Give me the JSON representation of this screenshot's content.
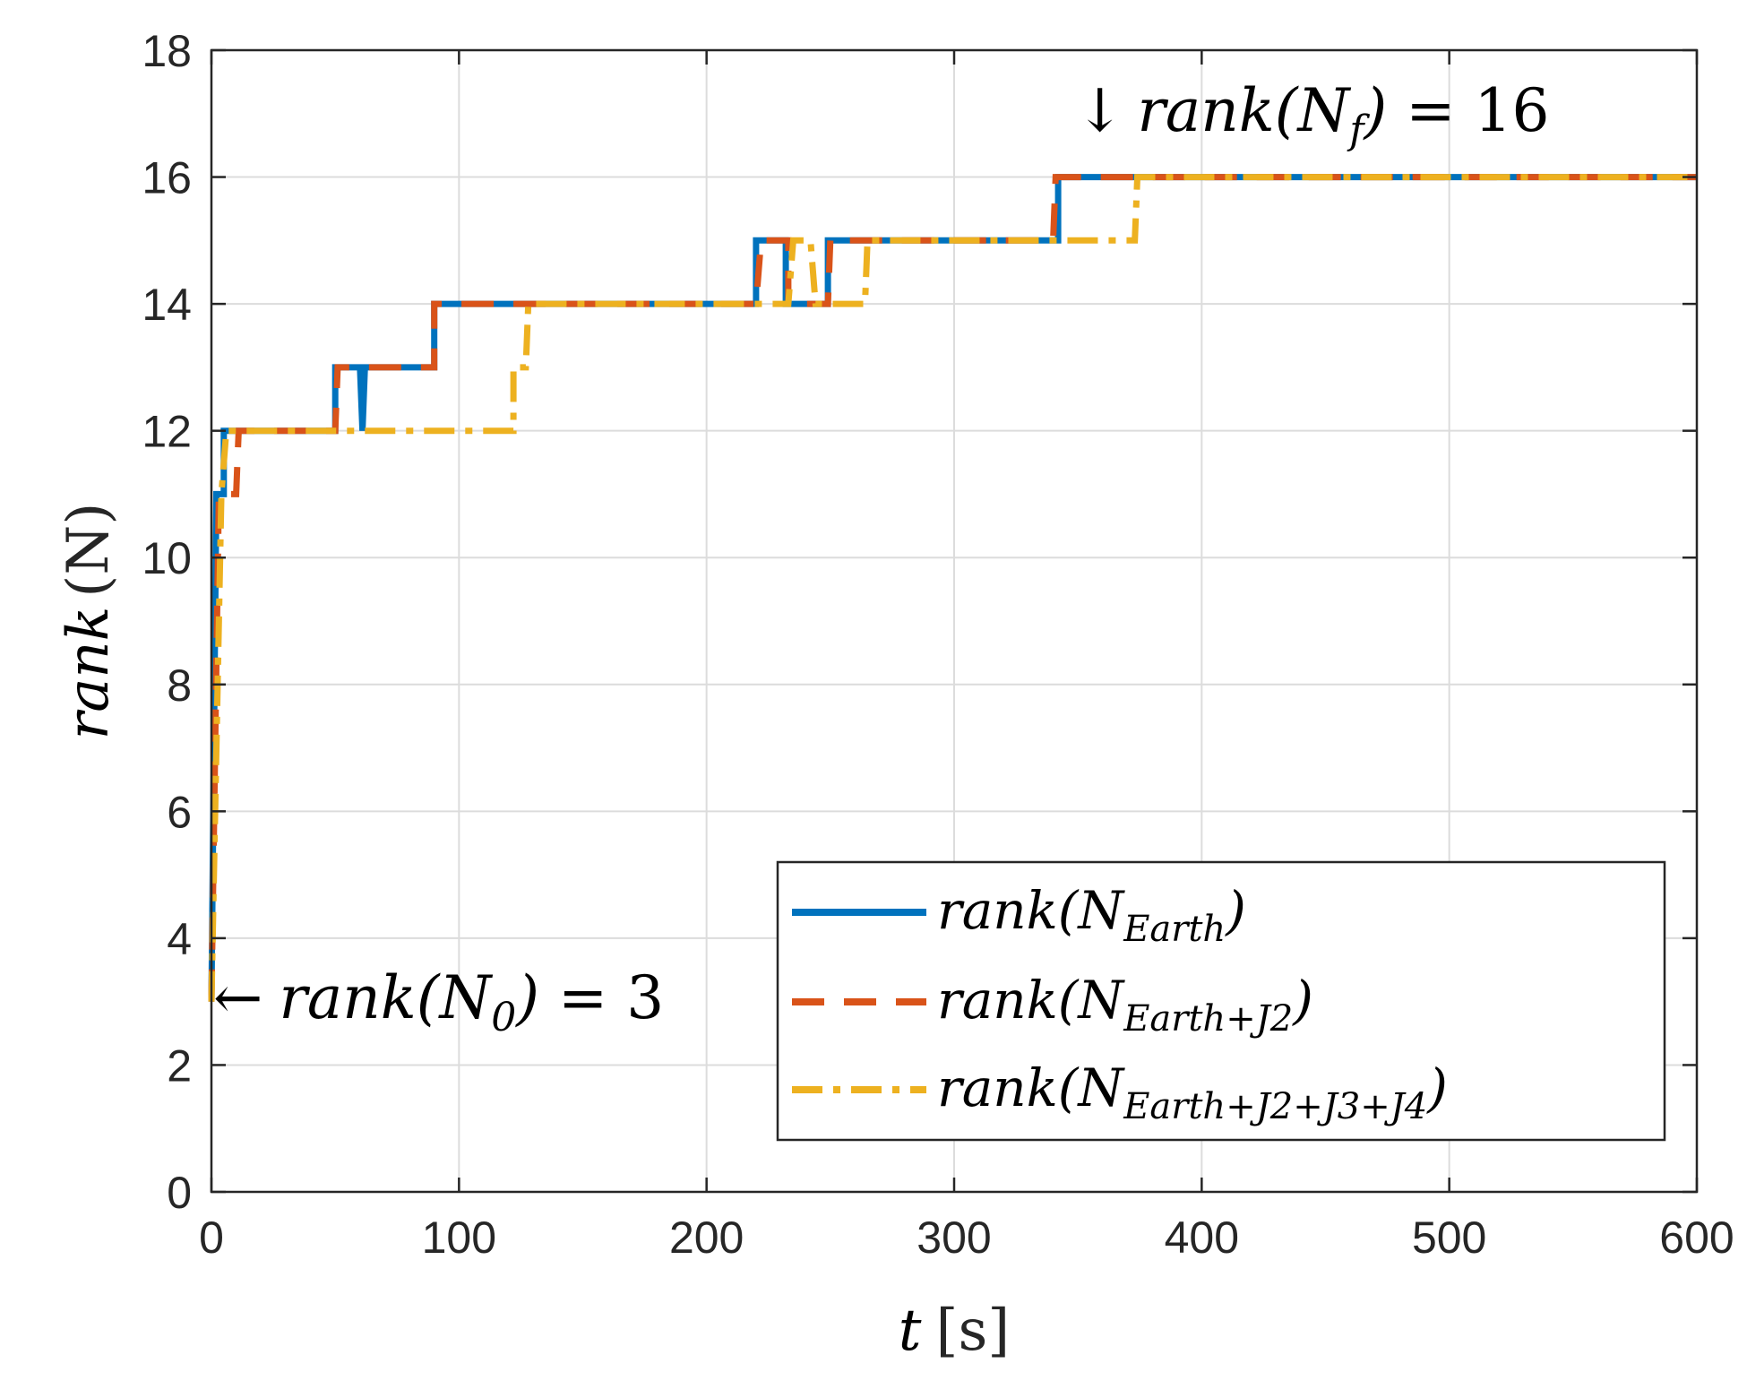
{
  "chart_data": {
    "type": "line",
    "xlabel_var": "t",
    "xlabel_unit": "[s]",
    "ylabel_var": "rank",
    "ylabel_arg": "(N)",
    "xlim": [
      0,
      600
    ],
    "ylim": [
      0,
      18
    ],
    "xticks": [
      0,
      100,
      200,
      300,
      400,
      500,
      600
    ],
    "yticks": [
      0,
      2,
      4,
      6,
      8,
      10,
      12,
      14,
      16,
      18
    ],
    "grid": true,
    "legend_position": "bottom-right",
    "series": [
      {
        "name": "Earth",
        "label_main": "rank(N",
        "label_sub": "Earth",
        "label_close": ")",
        "color": "#0072BD",
        "style": "solid",
        "points": [
          [
            0,
            3
          ],
          [
            2,
            11
          ],
          [
            5,
            11
          ],
          [
            5,
            12
          ],
          [
            50,
            12
          ],
          [
            50,
            13
          ],
          [
            60,
            13
          ],
          [
            61,
            12
          ],
          [
            62,
            13
          ],
          [
            90,
            13
          ],
          [
            90,
            14
          ],
          [
            220,
            14
          ],
          [
            220,
            15
          ],
          [
            232,
            15
          ],
          [
            232,
            14
          ],
          [
            249,
            14
          ],
          [
            249,
            15
          ],
          [
            342,
            15
          ],
          [
            342,
            16
          ],
          [
            600,
            16
          ]
        ]
      },
      {
        "name": "Earth+J2",
        "label_main": "rank(N",
        "label_sub": "Earth+J2",
        "label_close": ")",
        "color": "#D95319",
        "style": "dashed",
        "points": [
          [
            0,
            3
          ],
          [
            3,
            11
          ],
          [
            10,
            11
          ],
          [
            11,
            12
          ],
          [
            50,
            12
          ],
          [
            51,
            13
          ],
          [
            90,
            13
          ],
          [
            90,
            14
          ],
          [
            220,
            14
          ],
          [
            222,
            15
          ],
          [
            233,
            15
          ],
          [
            233,
            14
          ],
          [
            249,
            14
          ],
          [
            250,
            15
          ],
          [
            340,
            15
          ],
          [
            341,
            16
          ],
          [
            600,
            16
          ]
        ]
      },
      {
        "name": "Earth+J2+J3+J4",
        "label_main": "rank(N",
        "label_sub": "Earth+J2+J3+J4",
        "label_close": ")",
        "color": "#EDB120",
        "style": "dashdot",
        "points": [
          [
            0,
            3
          ],
          [
            4,
            11
          ],
          [
            6,
            12
          ],
          [
            122,
            12
          ],
          [
            122,
            13
          ],
          [
            127,
            13
          ],
          [
            128,
            14
          ],
          [
            233,
            14
          ],
          [
            235,
            15
          ],
          [
            242,
            15
          ],
          [
            244,
            14
          ],
          [
            264,
            14
          ],
          [
            265,
            15
          ],
          [
            373,
            15
          ],
          [
            374,
            16
          ],
          [
            600,
            16
          ]
        ]
      }
    ],
    "annotations": [
      {
        "name": "initial-rank",
        "arrow": "←",
        "lhs": "rank(N",
        "sub": "0",
        "close": ")",
        "eq": " = ",
        "value": "3",
        "x": 0,
        "y": 3
      },
      {
        "name": "final-rank",
        "arrow": "↓",
        "lhs": "rank(N",
        "sub": "f",
        "close": ")",
        "eq": " = ",
        "value": "16",
        "x": 355,
        "y": 16
      }
    ]
  }
}
